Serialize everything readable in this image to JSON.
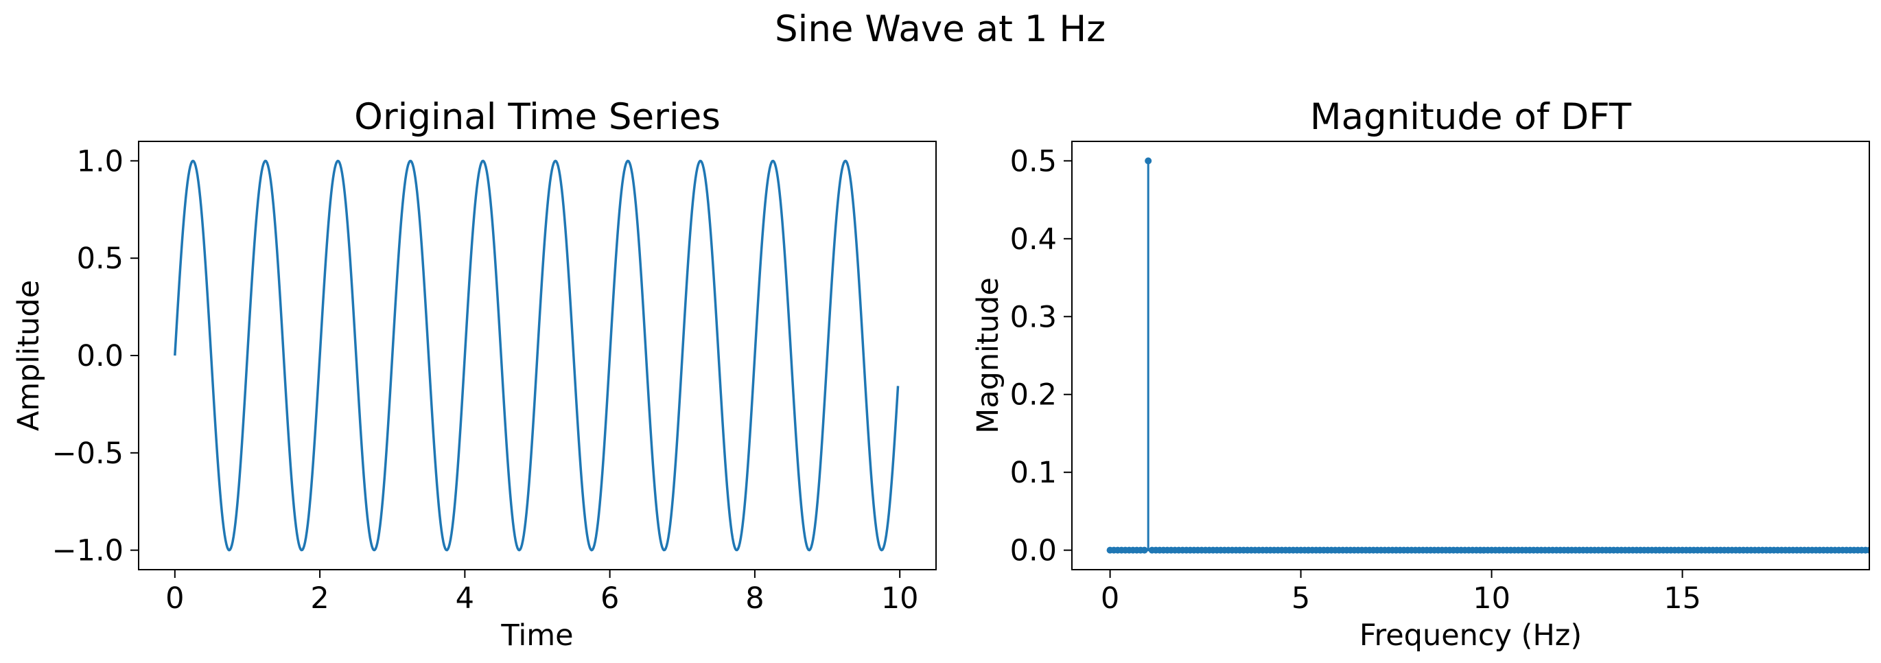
{
  "figure": {
    "suptitle": "Sine Wave at 1 Hz"
  },
  "chart_data": [
    {
      "type": "line",
      "title": "Original Time Series",
      "xlabel": "Time",
      "ylabel": "Amplitude",
      "xlim": [
        -0.5,
        10.5
      ],
      "ylim": [
        -1.1,
        1.1
      ],
      "xticks": [
        0,
        2,
        4,
        6,
        8,
        10
      ],
      "xtick_labels": [
        "0",
        "2",
        "4",
        "6",
        "8",
        "10"
      ],
      "yticks": [
        -1.0,
        -0.5,
        0.0,
        0.5,
        1.0
      ],
      "ytick_labels": [
        "−1.0",
        "−0.5",
        "0.0",
        "0.5",
        "1.0"
      ],
      "series": [
        {
          "function": "sin(2*pi*1*t)",
          "frequency_hz": 1,
          "x_start": 0,
          "x_end": 9.975,
          "color": "#1f77b4"
        }
      ],
      "grid": false,
      "legend": "none"
    },
    {
      "type": "stem",
      "title": "Magnitude of DFT",
      "xlabel": "Frequency (Hz)",
      "ylabel": "Magnitude",
      "xlim": [
        -1,
        19.9
      ],
      "ylim": [
        -0.025,
        0.525
      ],
      "xticks": [
        0,
        5,
        10,
        15
      ],
      "xtick_labels": [
        "0",
        "5",
        "10",
        "15"
      ],
      "yticks": [
        0.0,
        0.1,
        0.2,
        0.3,
        0.4,
        0.5
      ],
      "ytick_labels": [
        "0.0",
        "0.1",
        "0.2",
        "0.3",
        "0.4",
        "0.5"
      ],
      "series": [
        {
          "frequency_step_hz": 0.1,
          "frequency_start_hz": 0,
          "frequency_end_hz": 19.9,
          "peaks": [
            {
              "x": 1.0,
              "y": 0.5
            }
          ],
          "baseline_value": 0.0,
          "color": "#1f77b4"
        }
      ],
      "grid": false,
      "legend": "none"
    }
  ]
}
